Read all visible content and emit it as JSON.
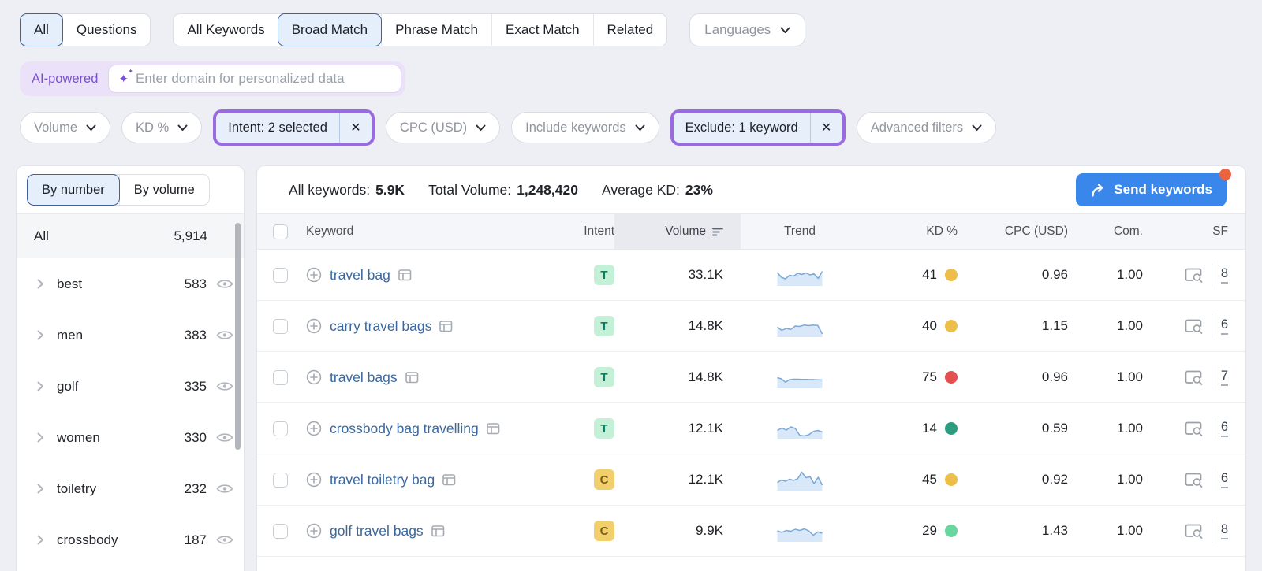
{
  "icons": {
    "close": "✕",
    "sparkles": "✦"
  },
  "colors": {
    "highlight_purple": "#9a6be0",
    "selected_blue_bg": "#e5effc",
    "selected_blue_border": "#41629b",
    "send_button_blue": "#3a87ec",
    "notification_orange": "#ec6340",
    "link_blue": "#3a689f",
    "spark_line": "#7aa9d8",
    "spark_fill": "#d9e8f9"
  },
  "top_tabs": {
    "group1": [
      {
        "label": "All",
        "selected": true
      },
      {
        "label": "Questions",
        "selected": false
      }
    ],
    "group2": [
      {
        "label": "All Keywords",
        "selected": false
      },
      {
        "label": "Broad Match",
        "selected": true
      },
      {
        "label": "Phrase Match",
        "selected": false
      },
      {
        "label": "Exact Match",
        "selected": false
      },
      {
        "label": "Related",
        "selected": false
      }
    ],
    "languages": "Languages"
  },
  "ai": {
    "badge": "AI-powered",
    "placeholder": "Enter domain for personalized data"
  },
  "filters": {
    "volume": "Volume",
    "kd": "KD %",
    "intent": "Intent: 2 selected",
    "cpc": "CPC (USD)",
    "include": "Include keywords",
    "exclude": "Exclude: 1 keyword",
    "advanced": "Advanced filters"
  },
  "sidebar": {
    "tabs": [
      {
        "label": "By number",
        "selected": true
      },
      {
        "label": "By volume",
        "selected": false
      }
    ],
    "all_row": {
      "label": "All",
      "count": "5,914"
    },
    "groups": [
      {
        "label": "best",
        "count": "583"
      },
      {
        "label": "men",
        "count": "383"
      },
      {
        "label": "golf",
        "count": "335"
      },
      {
        "label": "women",
        "count": "330"
      },
      {
        "label": "toiletry",
        "count": "232"
      },
      {
        "label": "crossbody",
        "count": "187"
      }
    ]
  },
  "summary": {
    "all_keywords_label": "All keywords:",
    "all_keywords_value": "5.9K",
    "total_volume_label": "Total Volume:",
    "total_volume_value": "1,248,420",
    "average_kd_label": "Average KD:",
    "average_kd_value": "23%",
    "send_button": "Send keywords"
  },
  "table": {
    "columns": [
      "Keyword",
      "Intent",
      "Volume",
      "Trend",
      "KD %",
      "CPC (USD)",
      "Com.",
      "SF"
    ],
    "rows": [
      {
        "keyword": "travel bag",
        "intent": "T",
        "intent_bg": "#c3f0d7",
        "intent_fg": "#0d7f5e",
        "volume": "33.1K",
        "kd": "41",
        "kd_color": "#edbf4a",
        "cpc": "0.96",
        "com": "1.00",
        "sf": "8",
        "trend": [
          62,
          38,
          30,
          48,
          44,
          58,
          52,
          60,
          50,
          55,
          32,
          68
        ]
      },
      {
        "keyword": "carry travel bags",
        "intent": "T",
        "intent_bg": "#c3f0d7",
        "intent_fg": "#0d7f5e",
        "volume": "14.8K",
        "kd": "40",
        "kd_color": "#edbf4a",
        "cpc": "1.15",
        "com": "1.00",
        "sf": "6",
        "trend": [
          45,
          28,
          38,
          33,
          50,
          48,
          55,
          52,
          55,
          53,
          10
        ]
      },
      {
        "keyword": "travel bags",
        "intent": "T",
        "intent_bg": "#c3f0d7",
        "intent_fg": "#0d7f5e",
        "volume": "14.8K",
        "kd": "75",
        "kd_color": "#e4504f",
        "cpc": "0.96",
        "com": "1.00",
        "sf": "7",
        "trend": [
          48,
          42,
          25,
          38,
          40,
          40,
          39,
          39,
          38,
          38,
          37,
          36
        ]
      },
      {
        "keyword": "crossbody bag travelling",
        "intent": "T",
        "intent_bg": "#c3f0d7",
        "intent_fg": "#0d7f5e",
        "volume": "12.1K",
        "kd": "14",
        "kd_color": "#2e9c80",
        "cpc": "0.59",
        "com": "1.00",
        "sf": "6",
        "trend": [
          40,
          52,
          42,
          58,
          50,
          15,
          12,
          18,
          35,
          40,
          32
        ]
      },
      {
        "keyword": "travel toiletry bag",
        "intent": "C",
        "intent_bg": "#f2cf6d",
        "intent_fg": "#7c5e12",
        "volume": "12.1K",
        "kd": "45",
        "kd_color": "#edbf4a",
        "cpc": "0.92",
        "com": "1.00",
        "sf": "6",
        "trend": [
          35,
          48,
          42,
          52,
          46,
          55,
          88,
          60,
          65,
          30,
          62,
          22
        ]
      },
      {
        "keyword": "golf travel bags",
        "intent": "C",
        "intent_bg": "#f2cf6d",
        "intent_fg": "#7c5e12",
        "volume": "9.9K",
        "kd": "29",
        "kd_color": "#69d6a0",
        "cpc": "1.43",
        "com": "1.00",
        "sf": "8",
        "trend": [
          50,
          42,
          52,
          48,
          58,
          52,
          60,
          50,
          28,
          45,
          38
        ]
      }
    ]
  }
}
